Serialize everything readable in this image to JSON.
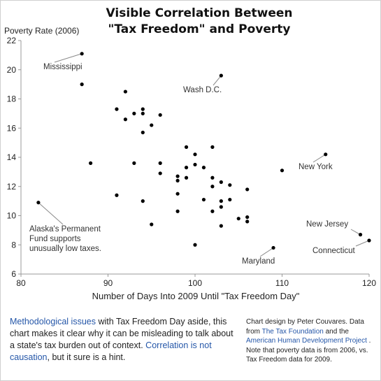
{
  "chart_data": {
    "type": "scatter",
    "title": [
      "Visible Correlation Between",
      "\"Tax Freedom\" and Poverty"
    ],
    "xlabel": "Number of Days Into 2009 Until \"Tax Freedom Day\"",
    "ylabel": "Poverty Rate (2006)",
    "xlim": [
      80,
      120
    ],
    "ylim": [
      6,
      22
    ],
    "x_ticks": [
      "80",
      "90",
      "100",
      "110",
      "120"
    ],
    "y_ticks": [
      "6",
      "8",
      "10",
      "12",
      "14",
      "16",
      "18",
      "20",
      "22"
    ],
    "grid": false,
    "points": [
      {
        "x": 87,
        "y": 21.1
      },
      {
        "x": 87,
        "y": 19.0
      },
      {
        "x": 103,
        "y": 19.6
      },
      {
        "x": 92,
        "y": 18.5
      },
      {
        "x": 91,
        "y": 17.3
      },
      {
        "x": 93,
        "y": 17.0
      },
      {
        "x": 94,
        "y": 17.3
      },
      {
        "x": 94,
        "y": 17.0
      },
      {
        "x": 96,
        "y": 16.9
      },
      {
        "x": 92,
        "y": 16.6
      },
      {
        "x": 95,
        "y": 16.2
      },
      {
        "x": 94,
        "y": 15.7
      },
      {
        "x": 99,
        "y": 14.7
      },
      {
        "x": 102,
        "y": 14.7
      },
      {
        "x": 100,
        "y": 14.2
      },
      {
        "x": 115,
        "y": 14.2
      },
      {
        "x": 88,
        "y": 13.6
      },
      {
        "x": 93,
        "y": 13.6
      },
      {
        "x": 96,
        "y": 13.6
      },
      {
        "x": 100,
        "y": 13.5
      },
      {
        "x": 99,
        "y": 13.3
      },
      {
        "x": 101,
        "y": 13.3
      },
      {
        "x": 110,
        "y": 13.1
      },
      {
        "x": 96,
        "y": 12.9
      },
      {
        "x": 98,
        "y": 12.7
      },
      {
        "x": 99,
        "y": 12.6
      },
      {
        "x": 102,
        "y": 12.6
      },
      {
        "x": 98,
        "y": 12.4
      },
      {
        "x": 103,
        "y": 12.3
      },
      {
        "x": 104,
        "y": 12.1
      },
      {
        "x": 102,
        "y": 12.0
      },
      {
        "x": 106,
        "y": 11.8
      },
      {
        "x": 98,
        "y": 11.5
      },
      {
        "x": 91,
        "y": 11.4
      },
      {
        "x": 101,
        "y": 11.1
      },
      {
        "x": 103,
        "y": 11.0
      },
      {
        "x": 104,
        "y": 11.1
      },
      {
        "x": 94,
        "y": 11.0
      },
      {
        "x": 82,
        "y": 10.9
      },
      {
        "x": 103,
        "y": 10.6
      },
      {
        "x": 98,
        "y": 10.3
      },
      {
        "x": 102,
        "y": 10.3
      },
      {
        "x": 105,
        "y": 9.8
      },
      {
        "x": 106,
        "y": 9.9
      },
      {
        "x": 106,
        "y": 9.6
      },
      {
        "x": 95,
        "y": 9.4
      },
      {
        "x": 103,
        "y": 9.3
      },
      {
        "x": 100,
        "y": 8.0
      },
      {
        "x": 119,
        "y": 8.7
      },
      {
        "x": 120,
        "y": 8.3
      },
      {
        "x": 109,
        "y": 7.8
      }
    ],
    "annotations": [
      {
        "lines": [
          "Mississippi"
        ],
        "point": {
          "x": 87,
          "y": 21.1
        }
      },
      {
        "lines": [
          "Wash D.C."
        ],
        "point": {
          "x": 103,
          "y": 19.6
        }
      },
      {
        "lines": [
          "New York"
        ],
        "point": {
          "x": 115,
          "y": 14.2
        }
      },
      {
        "lines": [
          "Alaska's Permanent",
          "Fund supports",
          "unusually low taxes."
        ],
        "point": {
          "x": 82,
          "y": 10.9
        }
      },
      {
        "lines": [
          "New Jersey"
        ],
        "point": {
          "x": 119,
          "y": 8.7
        }
      },
      {
        "lines": [
          "Connecticut"
        ],
        "point": {
          "x": 120,
          "y": 8.3
        }
      },
      {
        "lines": [
          "Maryland"
        ],
        "point": {
          "x": 109,
          "y": 7.8
        }
      }
    ]
  },
  "caption_left": {
    "link1": "Methodological issues",
    "text1": " with Tax Freedom Day aside, this chart makes it clear why it can be misleading to talk about a state's tax burden out of context. ",
    "link2": "Correlation is not causation",
    "text2": ", but it sure is a hint."
  },
  "caption_right": {
    "text1": "Chart design by Peter Couvares. Data from ",
    "link1": "The Tax Foundation",
    "text2": " and the ",
    "link2": "American Human Development Project",
    "text3": " . Note that poverty data is from 2006, vs. Tax Freedom data for 2009."
  },
  "colors": {
    "link": "#2456a8",
    "point": "#000000",
    "axis": "#999999"
  }
}
